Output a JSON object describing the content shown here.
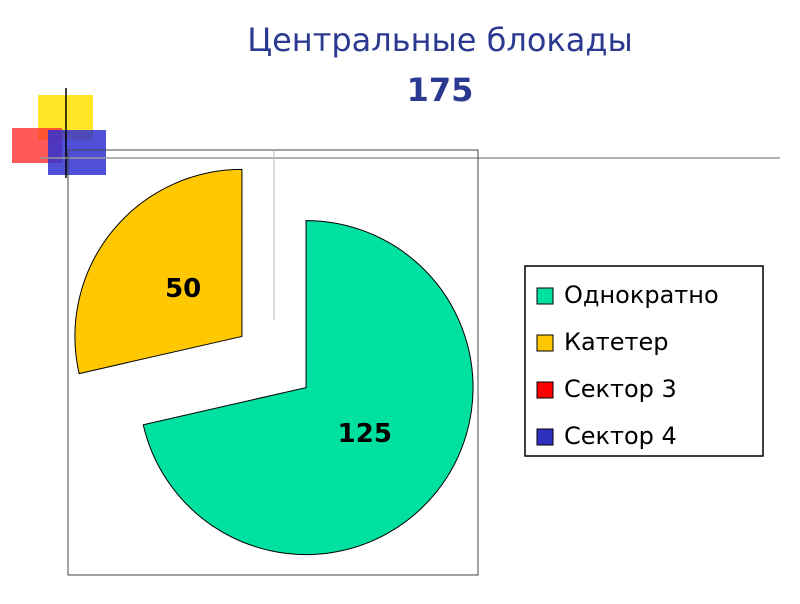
{
  "chart_data": {
    "type": "pie",
    "title": "Центральные блокады",
    "subtitle": "175",
    "categories": [
      "Однократно",
      "Катетер",
      "Сектор 3",
      "Сектор 4"
    ],
    "values": [
      125,
      50,
      0,
      0
    ],
    "colors": [
      "#00e0a0",
      "#ffc800",
      "#ff0000",
      "#3030c0"
    ],
    "legend": "right"
  }
}
